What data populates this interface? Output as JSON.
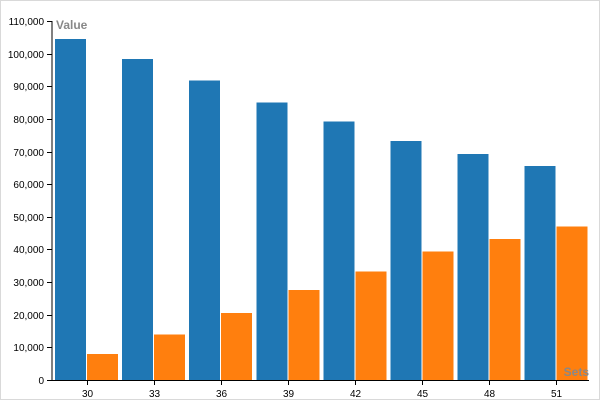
{
  "chart_data": {
    "type": "bar",
    "title": "",
    "xlabel": "Sets",
    "ylabel": "Value",
    "categories": [
      "30",
      "33",
      "36",
      "39",
      "42",
      "45",
      "48",
      "51"
    ],
    "series": [
      {
        "color": "#1f77b4",
        "values": [
          104500,
          98300,
          91800,
          85000,
          79200,
          73200,
          69300,
          65500
        ]
      },
      {
        "color": "#ff7f0e",
        "values": [
          8000,
          14000,
          20500,
          27600,
          33300,
          39300,
          43200,
          47000
        ]
      }
    ],
    "ylim": [
      0,
      110000
    ],
    "yticks": [
      0,
      10000,
      20000,
      30000,
      40000,
      50000,
      60000,
      70000,
      80000,
      90000,
      100000,
      110000
    ],
    "grid": false,
    "legend": "none"
  }
}
